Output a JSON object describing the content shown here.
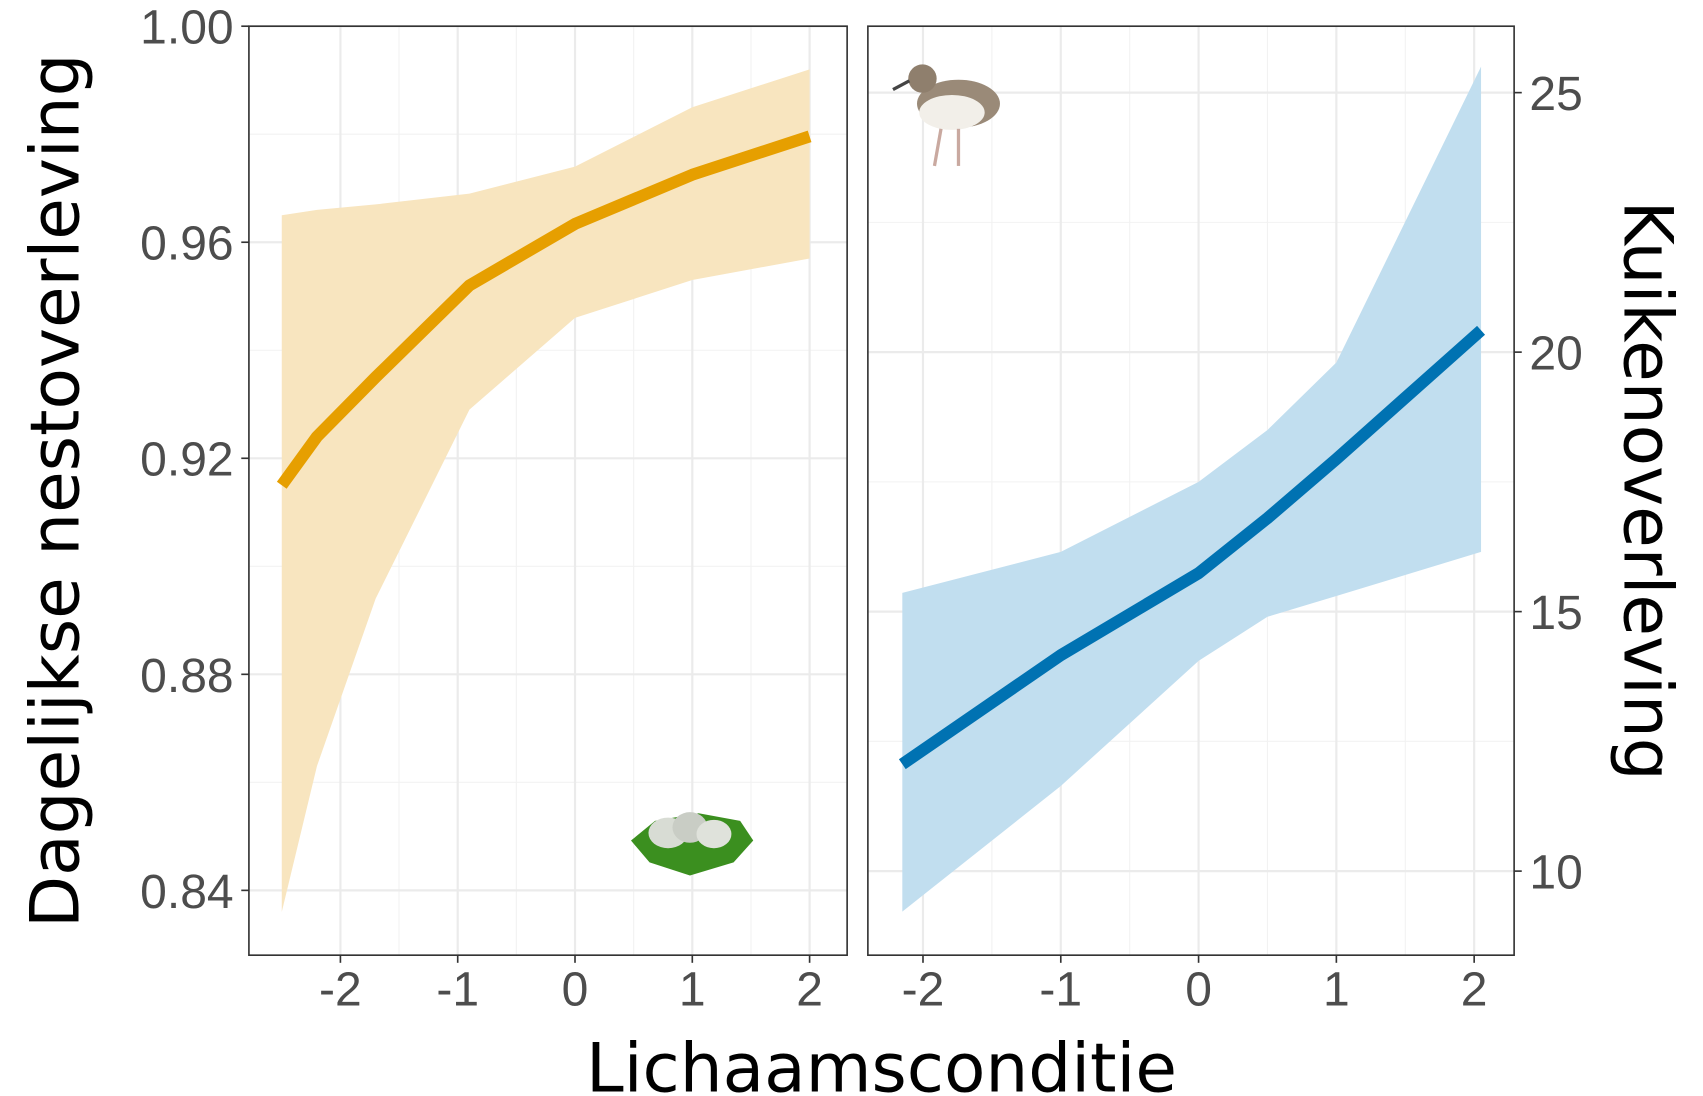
{
  "chart_data": [
    {
      "type": "line",
      "ylabel": "Dagelijkse nestoverleving",
      "xlabel": "Lichaamsconditie",
      "x": [
        -2.5,
        -2.2,
        -1.7,
        -0.9,
        0,
        1,
        2
      ],
      "series": [
        {
          "color": "#e69f00",
          "band_color": "#f8e5bf",
          "values": [
            0.915,
            0.924,
            0.935,
            0.952,
            0.9634,
            0.9725,
            0.9796
          ],
          "lower": [
            0.836,
            0.863,
            0.894,
            0.929,
            0.946,
            0.953,
            0.957
          ],
          "upper": [
            0.965,
            0.966,
            0.967,
            0.969,
            0.974,
            0.985,
            0.992
          ]
        }
      ],
      "xlim": [
        -2.78,
        2.32
      ],
      "xticks": [
        -2,
        -1,
        0,
        1,
        2
      ],
      "ylim": [
        0.828,
        1.0
      ],
      "yticks": [
        {
          "value": 0.84,
          "label": "0.84"
        },
        {
          "value": 0.88,
          "label": "0.88"
        },
        {
          "value": 0.92,
          "label": "0.92"
        },
        {
          "value": 0.96,
          "label": "0.96"
        },
        {
          "value": 1.0,
          "label": "1.00"
        }
      ],
      "y_axis_side": "left",
      "grid": true
    },
    {
      "type": "line",
      "ylabel": "Kuikenoverleving",
      "x": [
        -2.15,
        -1,
        0,
        0.5,
        1,
        2.05
      ],
      "series": [
        {
          "color": "#0072b2",
          "band_color": "#c1deef",
          "values": [
            12.06,
            14.16,
            15.74,
            16.8,
            17.94,
            20.42
          ],
          "lower": [
            9.22,
            11.64,
            14.05,
            14.9,
            15.3,
            16.15
          ],
          "upper": [
            15.36,
            16.15,
            17.5,
            18.5,
            19.8,
            25.5
          ]
        }
      ],
      "xlim": [
        -2.4,
        2.29
      ],
      "xticks": [
        -2,
        -1,
        0,
        1,
        2
      ],
      "ylim": [
        8.38,
        26.28
      ],
      "yticks": [
        10,
        15,
        20,
        25
      ],
      "y_axis_side": "right",
      "grid": true
    }
  ]
}
